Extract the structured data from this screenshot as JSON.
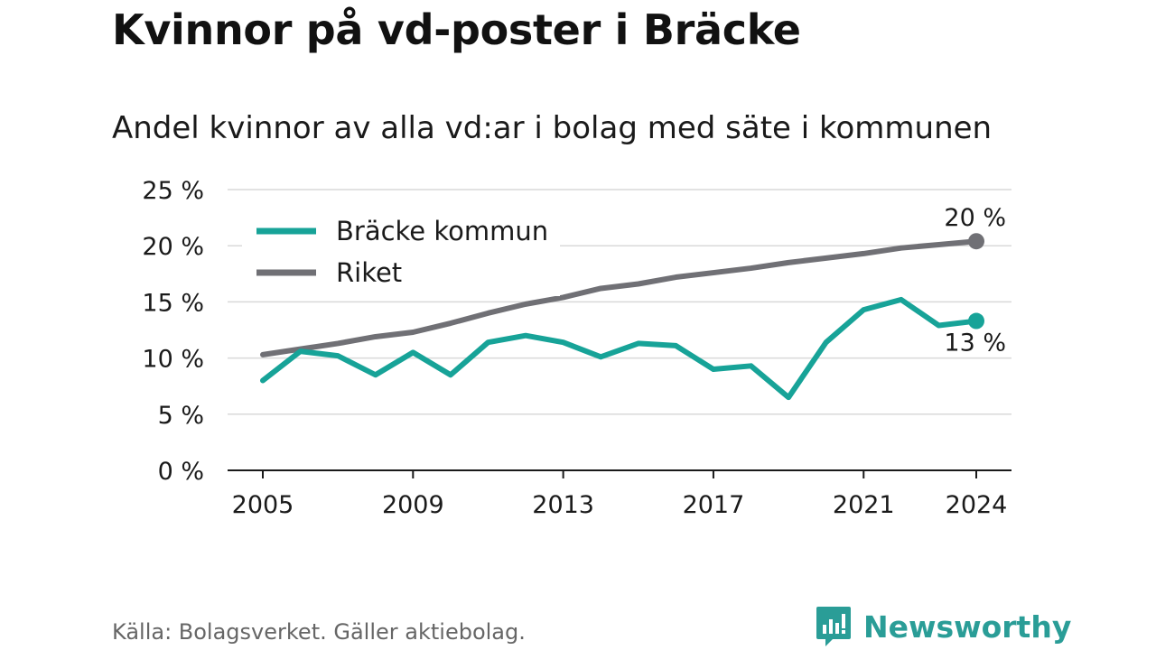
{
  "title": "Kvinnor på vd-poster i Bräcke",
  "subtitle": "Andel kvinnor av alla vd:ar i bolag med säte i kommunen",
  "source": "Källa: Bolagsverket. Gäller aktiebolag.",
  "brand": {
    "name": "Newsworthy",
    "icon": "newsworthy-logo-icon",
    "color": "#2a9d97"
  },
  "chart_data": {
    "type": "line",
    "x": [
      2005,
      2006,
      2007,
      2008,
      2009,
      2010,
      2011,
      2012,
      2013,
      2014,
      2015,
      2016,
      2017,
      2018,
      2019,
      2020,
      2021,
      2022,
      2023,
      2024
    ],
    "series": [
      {
        "name": "Bräcke kommun",
        "color": "#17a398",
        "values": [
          8.0,
          10.6,
          10.2,
          8.5,
          10.5,
          8.5,
          11.4,
          12.0,
          11.4,
          10.1,
          11.3,
          11.1,
          9.0,
          9.3,
          6.5,
          11.4,
          14.3,
          15.2,
          12.9,
          13.3
        ],
        "end_label": "13 %"
      },
      {
        "name": "Riket",
        "color": "#707075",
        "values": [
          10.3,
          10.8,
          11.3,
          11.9,
          12.3,
          13.1,
          14.0,
          14.8,
          15.4,
          16.2,
          16.6,
          17.2,
          17.6,
          18.0,
          18.5,
          18.9,
          19.3,
          19.8,
          20.1,
          20.4
        ],
        "end_label": "20 %"
      }
    ],
    "x_ticks": [
      "2005",
      "2009",
      "2013",
      "2017",
      "2021",
      "2024"
    ],
    "y_ticks": [
      "0 %",
      "5 %",
      "10 %",
      "15 %",
      "20 %",
      "25 %"
    ],
    "ylim": [
      0,
      25
    ],
    "xlabel": "",
    "ylabel": "",
    "legend_position": "top-left",
    "grid": true
  }
}
